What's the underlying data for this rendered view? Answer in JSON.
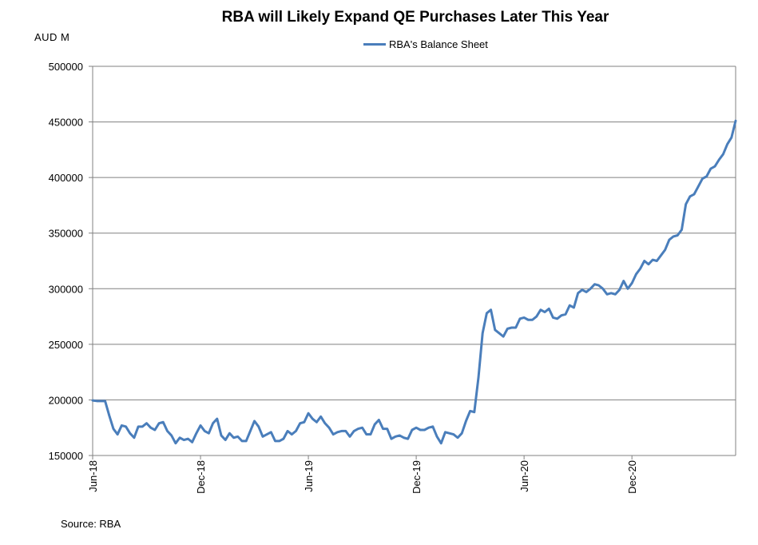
{
  "chart_data": {
    "type": "line",
    "title": "RBA will Likely Expand QE Purchases Later This Year",
    "ylabel": "AUD M",
    "xlabel": "",
    "ylim": [
      150000,
      500000
    ],
    "yticks": [
      150000,
      200000,
      250000,
      300000,
      350000,
      400000,
      450000,
      500000
    ],
    "ytick_labels": [
      "150000",
      "200000",
      "250000",
      "300000",
      "350000",
      "400000",
      "450000",
      "500000"
    ],
    "xticks": [
      {
        "index": 0,
        "label": "Jun-18"
      },
      {
        "index": 26,
        "label": "Dec-18"
      },
      {
        "index": 52,
        "label": "Jun-19"
      },
      {
        "index": 78,
        "label": "Dec-19"
      },
      {
        "index": 104,
        "label": "Jun-20"
      },
      {
        "index": 130,
        "label": "Dec-20"
      }
    ],
    "grid": true,
    "legend_position": "top-center",
    "series": [
      {
        "name": "RBA's Balance Sheet",
        "color": "#4a7ebb",
        "values": [
          199500,
          199000,
          199000,
          199000,
          186000,
          174000,
          169000,
          177000,
          176000,
          170000,
          166000,
          176000,
          176000,
          179000,
          175000,
          173000,
          179000,
          180000,
          172000,
          168000,
          161000,
          166000,
          164000,
          165000,
          162000,
          170000,
          177000,
          172000,
          170000,
          179000,
          183000,
          168000,
          164000,
          170000,
          166000,
          167000,
          163000,
          163000,
          172000,
          181000,
          176000,
          167000,
          169000,
          171000,
          163000,
          163000,
          165000,
          172000,
          169000,
          172000,
          179000,
          180000,
          188000,
          183000,
          180000,
          185000,
          179000,
          175000,
          169000,
          171000,
          172000,
          172000,
          167000,
          172000,
          174000,
          175000,
          169000,
          169000,
          178000,
          182000,
          174000,
          174000,
          165000,
          167000,
          168000,
          166000,
          165000,
          173000,
          175000,
          173000,
          173000,
          175000,
          176000,
          167000,
          161000,
          171000,
          170000,
          169000,
          166000,
          170000,
          181000,
          190000,
          189000,
          220000,
          260000,
          278000,
          281000,
          263000,
          260000,
          257000,
          264000,
          265000,
          265000,
          273000,
          274000,
          272000,
          272000,
          275000,
          281000,
          279000,
          282000,
          274000,
          273000,
          276000,
          277000,
          285000,
          283000,
          296000,
          299000,
          297000,
          300000,
          304000,
          303000,
          300000,
          295000,
          296000,
          295000,
          299000,
          307000,
          300000,
          305000,
          313000,
          318000,
          325000,
          322000,
          326000,
          325000,
          330000,
          335000,
          344000,
          347000,
          348000,
          353000,
          376000,
          383000,
          385000,
          392000,
          399000,
          401000,
          408000,
          410000,
          416000,
          421000,
          430000,
          436000,
          451000
        ]
      }
    ]
  },
  "source_text": "Source: RBA"
}
